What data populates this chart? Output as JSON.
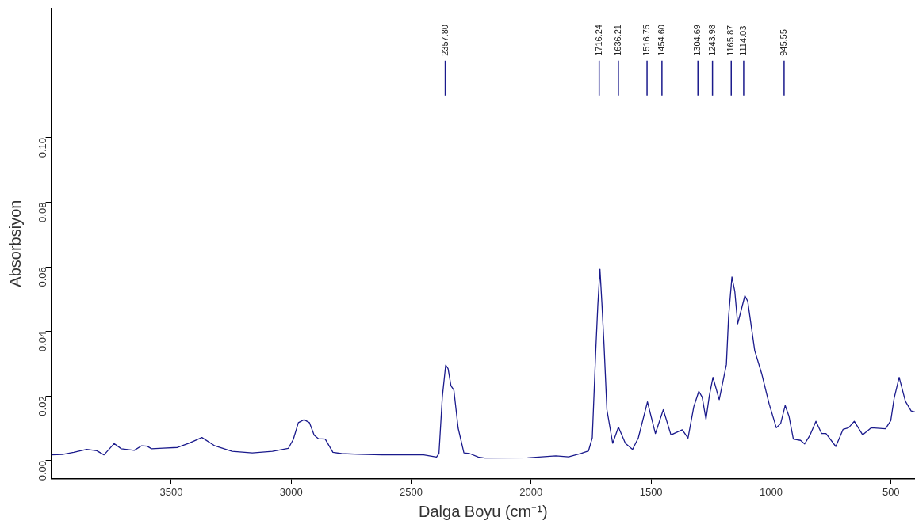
{
  "chart_data": {
    "type": "line",
    "xlabel": "Dalga Boyu (cm⁻¹)",
    "ylabel": "Absorbsiyon",
    "xlim": [
      4000,
      400
    ],
    "xticks": [
      3500,
      3000,
      2500,
      2000,
      1500,
      1000,
      500
    ],
    "ylim": [
      -0.0055,
      0.14
    ],
    "yticks": [
      {
        "value": 0,
        "label": "0.00"
      },
      {
        "value": 0.02,
        "label": "0.02"
      },
      {
        "value": 0.04,
        "label": "0.04"
      },
      {
        "value": 0.06,
        "label": "0.06"
      },
      {
        "value": 0.08,
        "label": "0.08"
      },
      {
        "value": 0.1,
        "label": "0.10"
      }
    ],
    "grid": false,
    "legend": false,
    "marker": "none",
    "line_style": "solid",
    "series": [
      {
        "color": "#1a1a8c",
        "x": [
          4000,
          3954,
          3906,
          3852,
          3810,
          3780,
          3738,
          3708,
          3654,
          3624,
          3600,
          3582,
          3534,
          3474,
          3426,
          3372,
          3318,
          3246,
          3162,
          3078,
          3012,
          2991,
          2970,
          2946,
          2924,
          2904,
          2886,
          2858,
          2826,
          2790,
          2718,
          2622,
          2448,
          2394,
          2384,
          2370,
          2356,
          2346,
          2334,
          2322,
          2304,
          2280,
          2256,
          2220,
          2193,
          2015,
          1897,
          1844,
          1790,
          1761,
          1745,
          1731,
          1722,
          1713,
          1705,
          1696,
          1684,
          1660,
          1636,
          1607,
          1577,
          1553,
          1515,
          1482,
          1449,
          1417,
          1370,
          1346,
          1322,
          1301,
          1287,
          1271,
          1257,
          1242,
          1216,
          1186,
          1177,
          1163,
          1151,
          1139,
          1109,
          1097,
          1068,
          1038,
          1008,
          978,
          960,
          941,
          925,
          907,
          877,
          860,
          837,
          813,
          789,
          771,
          730,
          700,
          677,
          653,
          618,
          582,
          523,
          501,
          487,
          466,
          440,
          416,
          400
        ],
        "values": [
          0.0018,
          0.0019,
          0.0026,
          0.0035,
          0.0031,
          0.0018,
          0.0053,
          0.0037,
          0.0032,
          0.0046,
          0.0045,
          0.0037,
          0.0039,
          0.0041,
          0.0054,
          0.0072,
          0.0046,
          0.0029,
          0.0024,
          0.0029,
          0.0038,
          0.0066,
          0.0118,
          0.0127,
          0.0118,
          0.0079,
          0.0068,
          0.0067,
          0.0026,
          0.0022,
          0.002,
          0.0018,
          0.0018,
          0.0011,
          0.0022,
          0.0197,
          0.0296,
          0.0285,
          0.0232,
          0.0219,
          0.0101,
          0.0024,
          0.0022,
          0.0011,
          0.0008,
          0.0009,
          0.0015,
          0.0012,
          0.0023,
          0.003,
          0.0071,
          0.0332,
          0.048,
          0.0593,
          0.0489,
          0.0358,
          0.0158,
          0.0054,
          0.0104,
          0.0054,
          0.0035,
          0.0071,
          0.0182,
          0.0084,
          0.0158,
          0.008,
          0.0096,
          0.007,
          0.0167,
          0.0215,
          0.0197,
          0.0128,
          0.0202,
          0.0258,
          0.0189,
          0.0298,
          0.0445,
          0.0569,
          0.0524,
          0.0424,
          0.0511,
          0.0493,
          0.0341,
          0.0267,
          0.0176,
          0.0102,
          0.0115,
          0.0171,
          0.0137,
          0.0067,
          0.0063,
          0.0052,
          0.008,
          0.0122,
          0.0084,
          0.0084,
          0.0044,
          0.0097,
          0.0102,
          0.0122,
          0.008,
          0.0102,
          0.0099,
          0.0124,
          0.0193,
          0.0258,
          0.0184,
          0.0154,
          0.0151
        ]
      }
    ],
    "ref_lines": [
      {
        "axis": "x",
        "value": 2357.8,
        "label": "2357.80"
      },
      {
        "axis": "x",
        "value": 1716.24,
        "label": "1716.24"
      },
      {
        "axis": "x",
        "value": 1636.21,
        "label": "1636.21"
      },
      {
        "axis": "x",
        "value": 1516.75,
        "label": "1516.75"
      },
      {
        "axis": "x",
        "value": 1454.6,
        "label": "1454.60"
      },
      {
        "axis": "x",
        "value": 1304.69,
        "label": "1304.69"
      },
      {
        "axis": "x",
        "value": 1243.98,
        "label": "1243.98"
      },
      {
        "axis": "x",
        "value": 1165.87,
        "label": "1165.87"
      },
      {
        "axis": "x",
        "value": 1114.03,
        "label": "1114.03"
      },
      {
        "axis": "x",
        "value": 945.55,
        "label": "945.55"
      }
    ]
  }
}
